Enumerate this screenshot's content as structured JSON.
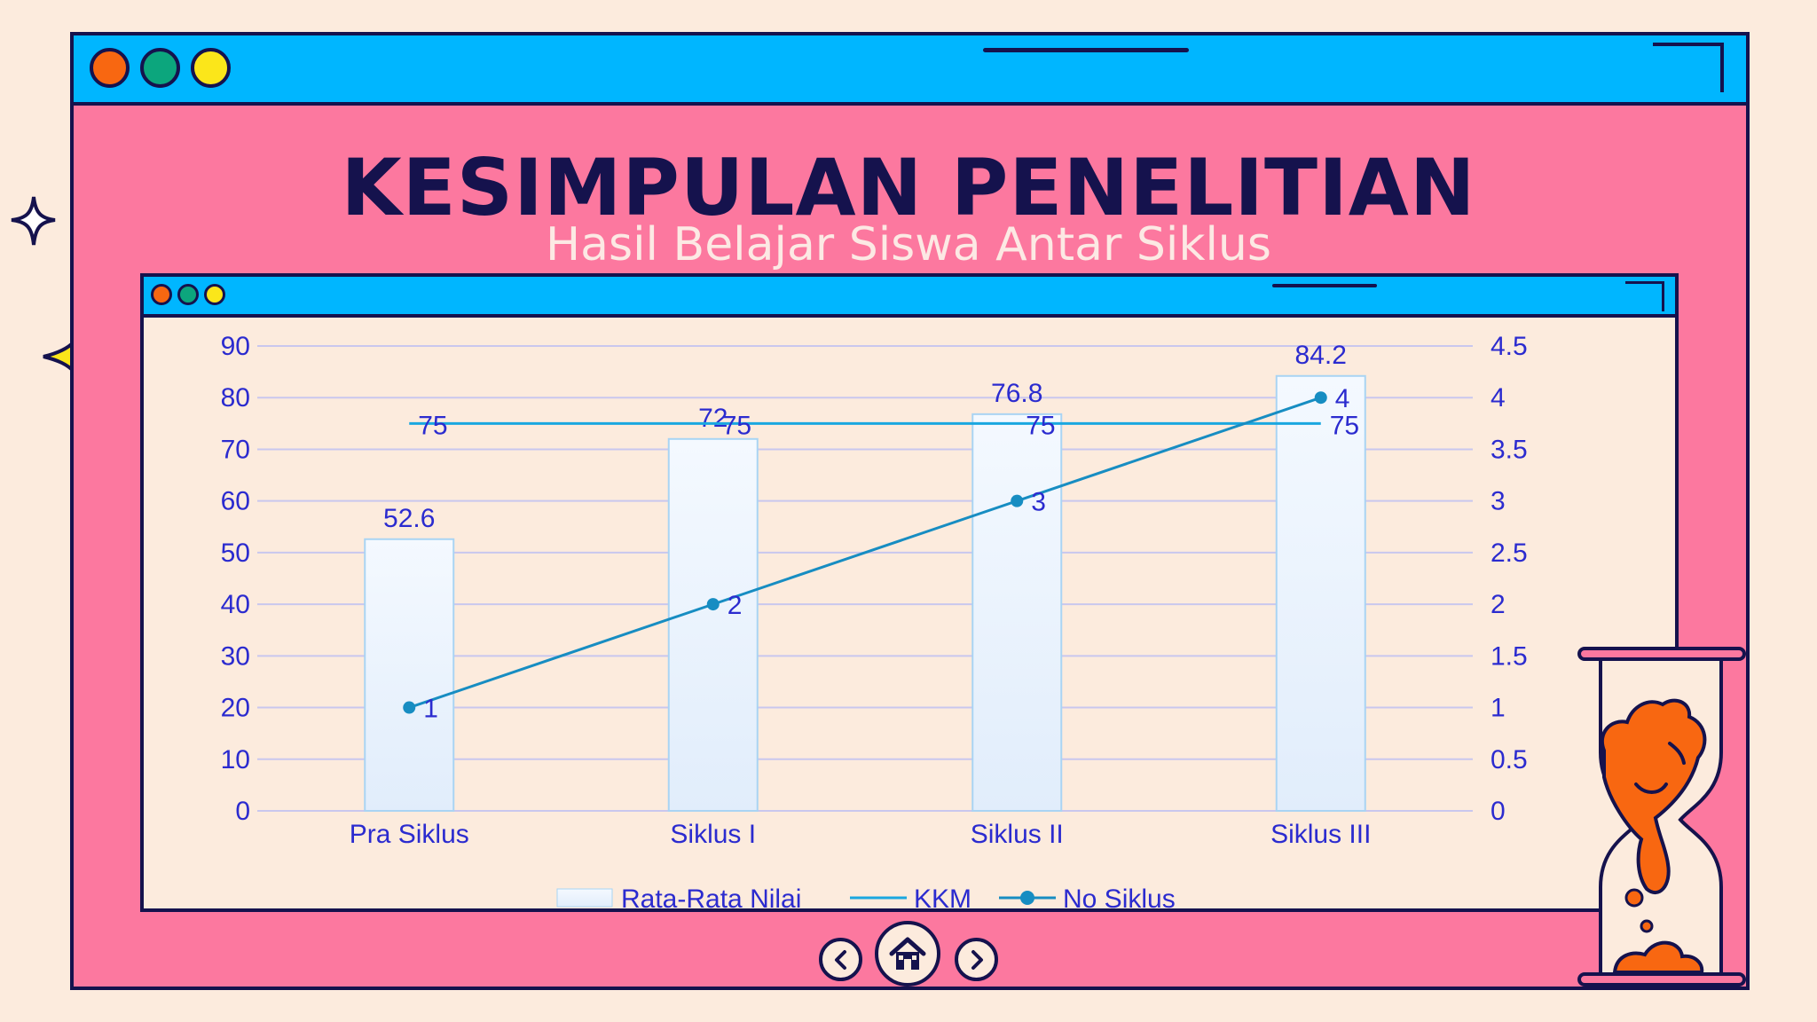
{
  "slide": {
    "title": "KESIMPULAN PENELITIAN",
    "subtitle": "Hasil Belajar Siswa Antar Siklus"
  },
  "colors": {
    "background": "#fcebdd",
    "window_pink": "#fc789f",
    "titlebar_blue": "#00b6ff",
    "outline_navy": "#15124d",
    "dot_orange": "#f86711",
    "dot_green": "#0ca67d",
    "dot_yellow": "#fbe61a",
    "chart_text": "#2b2bcf",
    "kkm_line": "#1aa7e0",
    "siklus_line": "#178dc2",
    "bar_fill": "#eaf3fd",
    "bar_stroke": "#a9d4f3"
  },
  "chart_data": {
    "type": "bar",
    "categories": [
      "Pra Siklus",
      "Siklus I",
      "Siklus II",
      "Siklus III"
    ],
    "series": [
      {
        "name": "Rata-Rata Nilai",
        "type": "bar",
        "axis": "left",
        "values": [
          52.6,
          72,
          76.8,
          84.2
        ]
      },
      {
        "name": "KKM",
        "type": "line",
        "axis": "left",
        "values": [
          75,
          75,
          75,
          75
        ]
      },
      {
        "name": "No Siklus",
        "type": "line",
        "axis": "right",
        "markers": true,
        "values": [
          1,
          2,
          3,
          4
        ]
      }
    ],
    "y_left": {
      "min": 0,
      "max": 90,
      "ticks": [
        "0",
        "10",
        "20",
        "30",
        "40",
        "50",
        "60",
        "70",
        "80",
        "90"
      ]
    },
    "y_right": {
      "min": 0,
      "max": 4.5,
      "ticks": [
        "0",
        "0.5",
        "1",
        "1.5",
        "2",
        "2.5",
        "3",
        "3.5",
        "4",
        "4.5"
      ]
    },
    "data_labels": {
      "Rata-Rata Nilai": [
        "52.6",
        "72",
        "76.8",
        "84.2"
      ],
      "KKM": [
        "75",
        "75",
        "75",
        "75"
      ],
      "No Siklus": [
        "1",
        "2",
        "3",
        "4"
      ]
    },
    "grid": true,
    "legend_position": "bottom"
  },
  "icons": {
    "nav_prev": "chevron-left-icon",
    "nav_home": "home-icon",
    "nav_next": "chevron-right-icon",
    "decor_stars": "sparkle-star-icon",
    "decor_hourglass": "hourglass-icon"
  }
}
